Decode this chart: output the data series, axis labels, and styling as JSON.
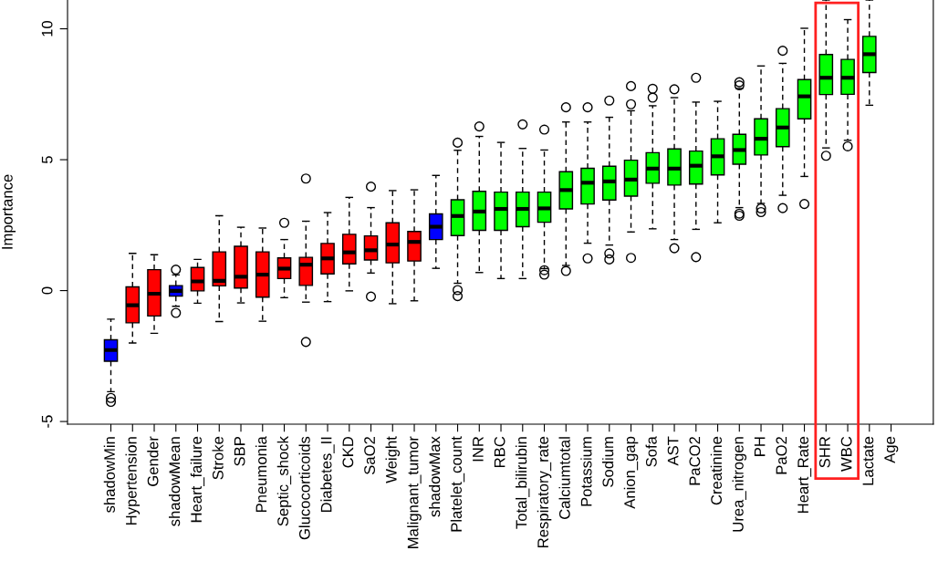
{
  "chart_data": {
    "type": "box",
    "ylabel": "Importance",
    "categories": [
      "shadowMin",
      "Hypertension",
      "Gender",
      "shadowMean",
      "Heart_failure",
      "Stroke",
      "SBP",
      "Pneumonia",
      "Septic_shock",
      "Glucocorticoids",
      "Diabetes_II",
      "CKD",
      "SaO2",
      "Weight",
      "Malignant_tumor",
      "shadowMax",
      "Platelet_count",
      "INR",
      "RBC",
      "Total_bilirubin",
      "Respiratory_rate",
      "Calciumtotal",
      "Potassium",
      "Sodium",
      "Anion_gap",
      "Sofa",
      "AST",
      "PaCO2",
      "Creatinine",
      "Urea_nitrogen",
      "PH",
      "PaO2",
      "Heart_Rate",
      "SHR",
      "WBC",
      "Lactate",
      "Age"
    ],
    "colors": [
      "#0000ff",
      "#ff0000",
      "#ff0000",
      "#0000ff",
      "#ff0000",
      "#ff0000",
      "#ff0000",
      "#ff0000",
      "#ff0000",
      "#ff0000",
      "#ff0000",
      "#ff0000",
      "#ff0000",
      "#ff0000",
      "#ff0000",
      "#0000ff",
      "#00ff00",
      "#00ff00",
      "#00ff00",
      "#00ff00",
      "#00ff00",
      "#00ff00",
      "#00ff00",
      "#00ff00",
      "#00ff00",
      "#00ff00",
      "#00ff00",
      "#00ff00",
      "#00ff00",
      "#00ff00",
      "#00ff00",
      "#00ff00",
      "#00ff00",
      "#00ff00",
      "#00ff00",
      "#00ff00",
      "#00ff00"
    ],
    "boxes": [
      {
        "low": -3.86,
        "q1": -2.7,
        "median": -2.27,
        "q3": -1.88,
        "high": -1.09,
        "outliers": [
          -4.1,
          -4.25
        ]
      },
      {
        "low": -2.0,
        "q1": -1.23,
        "median": -0.56,
        "q3": 0.14,
        "high": 1.42
      },
      {
        "low": -1.63,
        "q1": -0.97,
        "median": -0.12,
        "q3": 0.8,
        "high": 1.37
      },
      {
        "low": -0.6,
        "q1": -0.21,
        "median": -0.01,
        "q3": 0.19,
        "high": 0.6,
        "outliers": [
          0.8,
          -0.85
        ]
      },
      {
        "low": -0.48,
        "q1": -0.01,
        "median": 0.35,
        "q3": 0.88,
        "high": 1.19
      },
      {
        "low": -1.18,
        "q1": 0.18,
        "median": 0.37,
        "q3": 1.48,
        "high": 2.86
      },
      {
        "low": -0.47,
        "q1": 0.1,
        "median": 0.53,
        "q3": 1.69,
        "high": 2.42
      },
      {
        "low": -1.17,
        "q1": -0.25,
        "median": 0.61,
        "q3": 1.48,
        "high": 2.39
      },
      {
        "low": -0.27,
        "q1": 0.46,
        "median": 0.84,
        "q3": 1.25,
        "high": 1.95,
        "outliers": [
          2.59
        ]
      },
      {
        "low": -0.44,
        "q1": 0.2,
        "median": 0.99,
        "q3": 1.27,
        "high": 2.65,
        "outliers": [
          4.28,
          -1.96
        ]
      },
      {
        "low": -0.42,
        "q1": 0.64,
        "median": 1.23,
        "q3": 1.8,
        "high": 2.98
      },
      {
        "low": -0.01,
        "q1": 1.02,
        "median": 1.46,
        "q3": 2.15,
        "high": 3.56
      },
      {
        "low": 0.67,
        "q1": 1.17,
        "median": 1.54,
        "q3": 2.09,
        "high": 3.17,
        "outliers": [
          3.97,
          -0.23
        ]
      },
      {
        "low": -0.5,
        "q1": 1.06,
        "median": 1.76,
        "q3": 2.59,
        "high": 3.82
      },
      {
        "low": -0.39,
        "q1": 1.13,
        "median": 1.86,
        "q3": 2.26,
        "high": 3.85
      },
      {
        "low": 0.85,
        "q1": 1.95,
        "median": 2.44,
        "q3": 2.93,
        "high": 4.4
      },
      {
        "low": 0.28,
        "q1": 2.1,
        "median": 2.85,
        "q3": 3.47,
        "high": 5.36,
        "outliers": [
          5.65,
          0.02,
          -0.21
        ]
      },
      {
        "low": 0.69,
        "q1": 2.3,
        "median": 3.02,
        "q3": 3.79,
        "high": 5.89,
        "outliers": [
          6.27
        ]
      },
      {
        "low": 0.46,
        "q1": 2.3,
        "median": 3.12,
        "q3": 3.76,
        "high": 5.66
      },
      {
        "low": 0.46,
        "q1": 2.44,
        "median": 3.12,
        "q3": 3.76,
        "high": 5.43,
        "outliers": [
          6.35
        ]
      },
      {
        "low": 0.84,
        "q1": 2.61,
        "median": 3.14,
        "q3": 3.76,
        "high": 5.37,
        "outliers": [
          6.15,
          0.78,
          0.61
        ]
      },
      {
        "low": 0.96,
        "q1": 3.12,
        "median": 3.84,
        "q3": 4.54,
        "high": 6.44,
        "outliers": [
          7.0,
          0.75
        ]
      },
      {
        "low": 1.81,
        "q1": 3.31,
        "median": 4.12,
        "q3": 4.67,
        "high": 6.44,
        "outliers": [
          7.0,
          1.23
        ]
      },
      {
        "low": 1.74,
        "q1": 3.46,
        "median": 4.17,
        "q3": 4.75,
        "high": 6.62,
        "outliers": [
          7.26,
          1.42,
          1.19
        ]
      },
      {
        "low": 2.24,
        "q1": 3.61,
        "median": 4.24,
        "q3": 4.98,
        "high": 6.87,
        "outliers": [
          7.81,
          7.12,
          1.25
        ]
      },
      {
        "low": 2.36,
        "q1": 4.1,
        "median": 4.66,
        "q3": 5.27,
        "high": 7.06,
        "outliers": [
          7.71,
          7.37
        ]
      },
      {
        "low": 1.95,
        "q1": 4.03,
        "median": 4.66,
        "q3": 5.41,
        "high": 7.37,
        "outliers": [
          7.69,
          1.62
        ]
      },
      {
        "low": 2.34,
        "q1": 4.07,
        "median": 4.77,
        "q3": 5.33,
        "high": 7.2,
        "outliers": [
          8.13,
          1.28
        ]
      },
      {
        "low": 2.59,
        "q1": 4.42,
        "median": 5.13,
        "q3": 5.8,
        "high": 7.23
      },
      {
        "low": 3.17,
        "q1": 4.83,
        "median": 5.37,
        "q3": 5.97,
        "high": 7.72,
        "outliers": [
          7.96,
          7.84,
          2.94,
          2.86
        ]
      },
      {
        "low": 3.33,
        "q1": 5.18,
        "median": 5.8,
        "q3": 6.56,
        "high": 8.58,
        "outliers": [
          3.14,
          3.0
        ]
      },
      {
        "low": 3.64,
        "q1": 5.5,
        "median": 6.23,
        "q3": 6.95,
        "high": 8.68,
        "outliers": [
          9.16,
          3.15
        ]
      },
      {
        "low": 4.36,
        "q1": 6.56,
        "median": 7.42,
        "q3": 8.06,
        "high": 10.02,
        "outliers": [
          3.31
        ]
      },
      {
        "low": 5.45,
        "q1": 7.49,
        "median": 8.13,
        "q3": 9.02,
        "high": 11.1,
        "outliers": [
          5.15
        ]
      },
      {
        "low": 5.74,
        "q1": 7.5,
        "median": 8.13,
        "q3": 8.83,
        "high": 10.35,
        "outliers": [
          5.51
        ]
      },
      {
        "low": 7.08,
        "q1": 8.33,
        "median": 9.03,
        "q3": 9.71,
        "high": 11.1
      },
      null
    ],
    "ylim": [
      -5.1,
      11.1
    ],
    "yticks": [
      -5,
      0,
      5,
      10
    ]
  }
}
